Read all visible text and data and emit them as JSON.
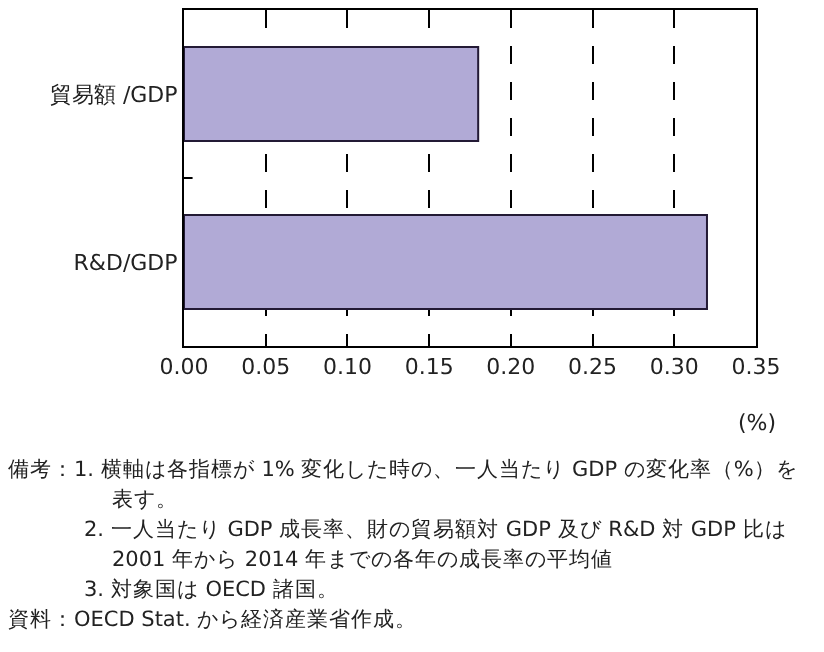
{
  "chart_data": {
    "type": "bar",
    "orientation": "horizontal",
    "categories": [
      "貿易額 /GDP",
      "R&D/GDP"
    ],
    "values": [
      0.18,
      0.32
    ],
    "color": "#b1aad6",
    "xlim": [
      0,
      0.35
    ],
    "xticks": [
      {
        "value": 0,
        "label": "0.00"
      },
      {
        "value": 0.05,
        "label": "0.05"
      },
      {
        "value": 0.1,
        "label": "0.10"
      },
      {
        "value": 0.15,
        "label": "0.15"
      },
      {
        "value": 0.2,
        "label": "0.20"
      },
      {
        "value": 0.25,
        "label": "0.25"
      },
      {
        "value": 0.3,
        "label": "0.30"
      },
      {
        "value": 0.35,
        "label": "0.35"
      }
    ],
    "xlabel": "(%)",
    "grid": "x",
    "line_style": "dashed",
    "legend": false,
    "annotations": [
      "備考：1. 横軸は各指標が 1% 変化した時の、一人当たり GDP の変化率（%）を表す。",
      "2. 一人当たり GDP 成長率、財の貿易額対 GDP 及び R&D 対 GDP 比は 2001 年から 2014 年までの各年の成長率の平均値",
      "3. 対象国は OECD 諸国。",
      "資料：OECD Stat. から経済産業省作成。"
    ]
  }
}
